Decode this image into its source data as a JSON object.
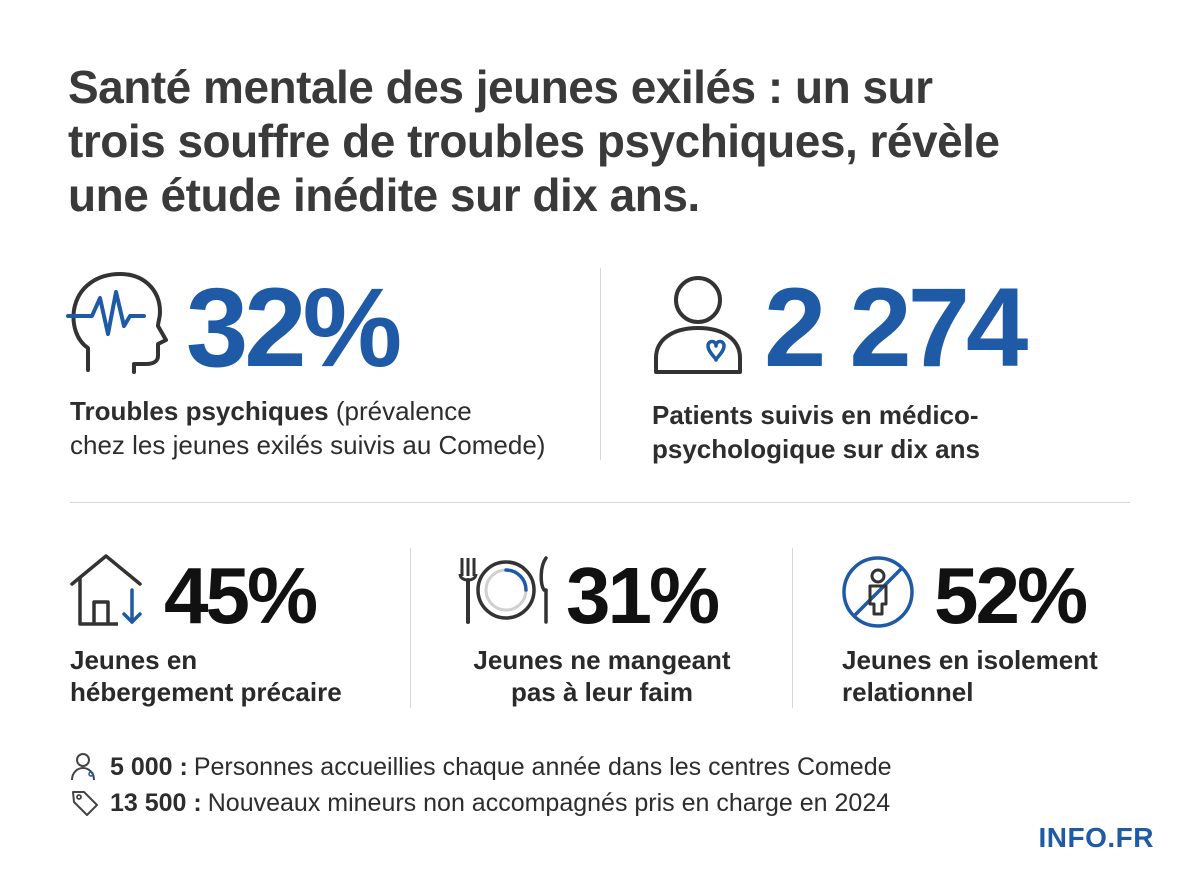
{
  "title": {
    "line1": "Santé mentale des jeunes exilés : un sur",
    "line2": "trois souffre de troubles psychiques, révèle",
    "line3": "une étude inédite sur dix ans."
  },
  "top_stats": [
    {
      "icon": "head-heartbeat-icon",
      "value": "32%",
      "label_bold": "Troubles psychiques",
      "label_rest": " (prévalence",
      "label_line2": "chez les jeunes exilés suivis au Comede)"
    },
    {
      "icon": "patient-heart-icon",
      "value": "2 274",
      "label_line1": "Patients suivis en médico-",
      "label_line2": "psychologique sur dix ans"
    }
  ],
  "bottom_stats": [
    {
      "icon": "house-down-arrow-icon",
      "value": "45%",
      "label_line1": "Jeunes en",
      "label_line2": "hébergement précaire"
    },
    {
      "icon": "plate-fork-knife-icon",
      "value": "31%",
      "label_line1": "Jeunes ne mangeant",
      "label_line2": "pas à leur faim"
    },
    {
      "icon": "isolated-person-icon",
      "value": "52%",
      "label_line1": "Jeunes en isolement",
      "label_line2": "relationnel"
    }
  ],
  "footer": [
    {
      "icon": "person-icon",
      "number": "5 000 :",
      "text": "Personnes accueillies chaque année dans les centres Comede"
    },
    {
      "icon": "tag-icon",
      "number": "13 500 :",
      "text": "Nouveaux mineurs non accompagnés pris en charge en 2024"
    }
  ],
  "brand": "INFO.FR",
  "colors": {
    "accent": "#1e5aa6",
    "text": "#2d2d2d",
    "divider": "#d6d6d6"
  }
}
